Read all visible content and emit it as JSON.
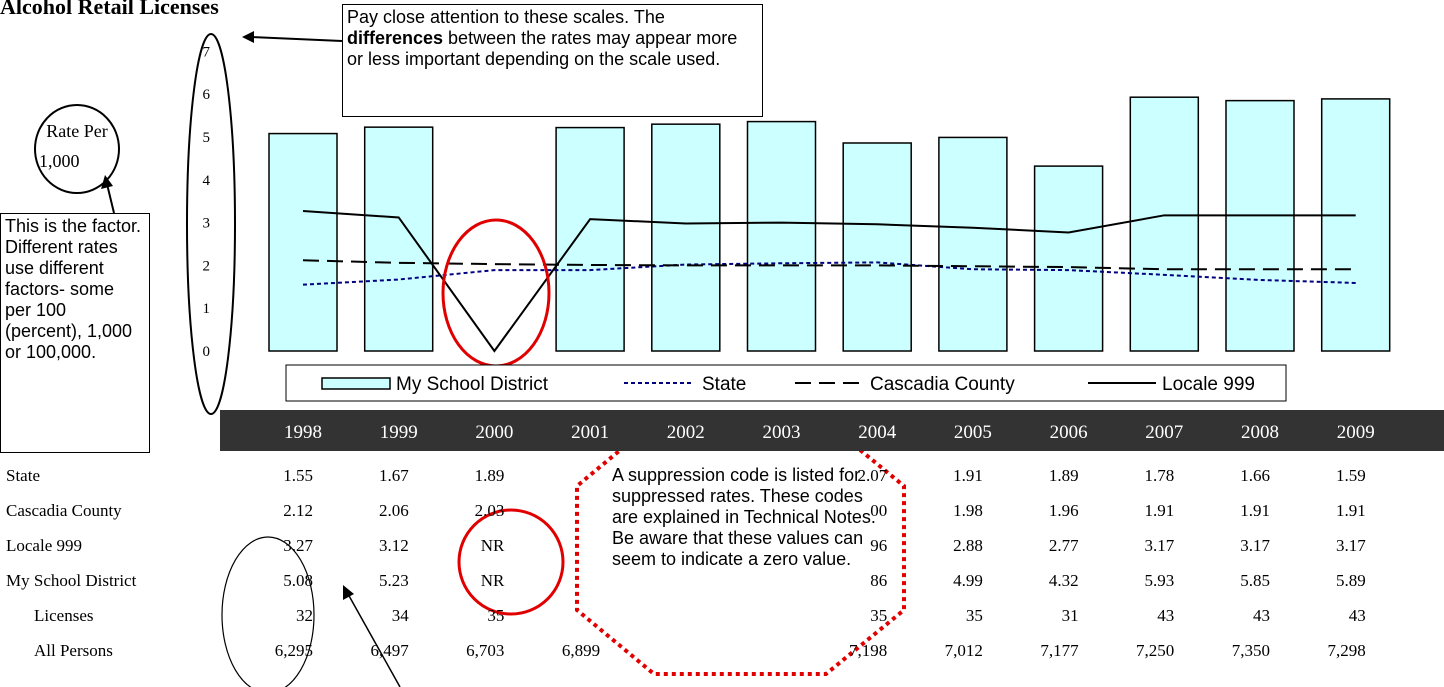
{
  "title": "Alcohol Retail Licenses",
  "notes": {
    "scales_before": "Pay close attention to these scales. The ",
    "scales_bold": "differences",
    "scales_after": " between the rates may appear more or less important depending on the scale used.",
    "rate_per_line1": "Rate Per",
    "rate_per_line2": "1,000",
    "factor": "This is the factor. Different rates use different factors- some per 100 (percent), 1,000 or 100,000.",
    "suppression": "A suppression code is listed for suppressed rates. These codes are explained in Technical Notes.  Be aware that these values can seem to indicate a zero value."
  },
  "chart_data": {
    "type": "bar",
    "categories": [
      "1998",
      "1999",
      "2000",
      "2001",
      "2002",
      "2003",
      "2004",
      "2005",
      "2006",
      "2007",
      "2008",
      "2009"
    ],
    "ylim": [
      0,
      7
    ],
    "yticks": [
      "0",
      "1",
      "2",
      "3",
      "4",
      "5",
      "6",
      "7"
    ],
    "series": [
      {
        "name": "My School District",
        "kind": "bar",
        "color": "#ccffff",
        "values": [
          5.08,
          5.23,
          null,
          5.22,
          5.3,
          5.36,
          4.86,
          4.99,
          4.32,
          5.93,
          5.85,
          5.89
        ]
      },
      {
        "name": "State",
        "kind": "line",
        "style": "dotted",
        "color": "#000080",
        "values": [
          1.55,
          1.67,
          1.89,
          1.89,
          2.02,
          2.05,
          2.07,
          1.91,
          1.89,
          1.78,
          1.66,
          1.59
        ]
      },
      {
        "name": "Cascadia County",
        "kind": "line",
        "style": "dashed",
        "color": "#000000",
        "values": [
          2.12,
          2.06,
          2.03,
          2.01,
          2.0,
          2.0,
          2.0,
          1.98,
          1.96,
          1.91,
          1.91,
          1.91
        ]
      },
      {
        "name": "Locale 999",
        "kind": "line",
        "style": "solid",
        "color": "#000000",
        "values": [
          3.27,
          3.12,
          0,
          3.08,
          2.98,
          3.0,
          2.96,
          2.88,
          2.77,
          3.17,
          3.17,
          3.17
        ]
      }
    ],
    "legend": "bottom"
  },
  "table": {
    "rows": [
      {
        "label": "State",
        "indent": false,
        "cells": [
          "1.55",
          "1.67",
          "1.89",
          "",
          "",
          "",
          "2.07",
          "1.91",
          "1.89",
          "1.78",
          "1.66",
          "1.59"
        ]
      },
      {
        "label": "Cascadia County",
        "indent": false,
        "cells": [
          "2.12",
          "2.06",
          "2.03",
          "",
          "",
          "",
          "00",
          "1.98",
          "1.96",
          "1.91",
          "1.91",
          "1.91"
        ]
      },
      {
        "label": "Locale 999",
        "indent": false,
        "cells": [
          "3.27",
          "3.12",
          "NR",
          "",
          "",
          "",
          "96",
          "2.88",
          "2.77",
          "3.17",
          "3.17",
          "3.17"
        ]
      },
      {
        "label": "My School District",
        "indent": false,
        "cells": [
          "5.08",
          "5.23",
          "NR",
          "",
          "",
          "",
          "86",
          "4.99",
          "4.32",
          "5.93",
          "5.85",
          "5.89"
        ]
      },
      {
        "label": "Licenses",
        "indent": true,
        "cells": [
          "32",
          "34",
          "35",
          "",
          "",
          "",
          "35",
          "35",
          "31",
          "43",
          "43",
          "43"
        ]
      },
      {
        "label": "All Persons",
        "indent": true,
        "cells": [
          "6,295",
          "6,497",
          "6,703",
          "6,899",
          "",
          "",
          "7,198",
          "7,012",
          "7,177",
          "7,250",
          "7,350",
          "7,298"
        ]
      }
    ]
  }
}
